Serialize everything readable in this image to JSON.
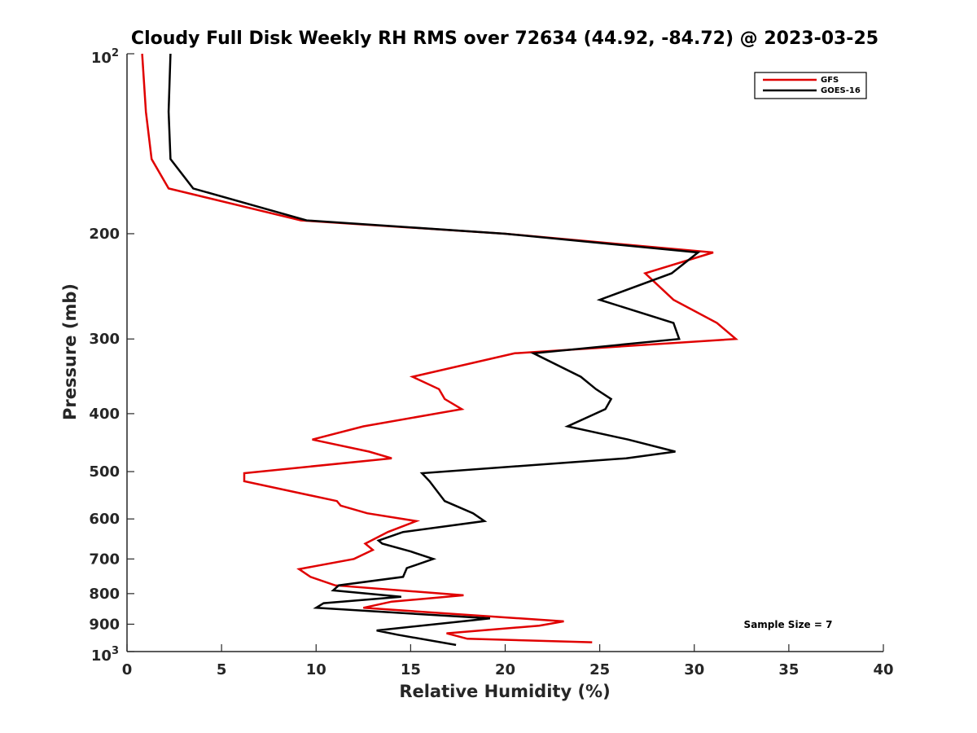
{
  "chart_data": {
    "type": "line",
    "title": "Cloudy Full Disk Weekly RH RMS over 72634 (44.92, -84.72) @ 2023-03-25",
    "xlabel": "Relative Humidity (%)",
    "ylabel": "Pressure (mb)",
    "xlim": [
      0,
      40
    ],
    "ylim": [
      100,
      1000
    ],
    "yscale": "log",
    "y_reversed": true,
    "grid": false,
    "legend_position": "top-right",
    "x_ticks": [
      0,
      5,
      10,
      15,
      20,
      25,
      30,
      35,
      40
    ],
    "x_tick_labels": [
      "0",
      "5",
      "10",
      "15",
      "20",
      "25",
      "30",
      "35",
      "40"
    ],
    "y_ticks": [
      200,
      300,
      400,
      500,
      600,
      700,
      800,
      900
    ],
    "y_tick_labels": [
      "200",
      "300",
      "400",
      "500",
      "600",
      "700",
      "800",
      "900"
    ],
    "y_decade_labels": [
      {
        "value": 100,
        "base": "10",
        "exp": "2"
      },
      {
        "value": 1000,
        "base": "10",
        "exp": "3"
      }
    ],
    "annotation": "Sample Size = 7",
    "series": [
      {
        "name": "GFS",
        "color": "#e00000",
        "points": [
          [
            0.8,
            100
          ],
          [
            1.0,
            125
          ],
          [
            1.3,
            150
          ],
          [
            2.2,
            168
          ],
          [
            9.2,
            190
          ],
          [
            20.0,
            200
          ],
          [
            31.0,
            215
          ],
          [
            27.4,
            233
          ],
          [
            28.9,
            258
          ],
          [
            31.2,
            282
          ],
          [
            32.2,
            300
          ],
          [
            20.5,
            317
          ],
          [
            15.1,
            347
          ],
          [
            16.5,
            364
          ],
          [
            16.8,
            378
          ],
          [
            17.7,
            393
          ],
          [
            12.5,
            420
          ],
          [
            9.8,
            442
          ],
          [
            12.8,
            463
          ],
          [
            14.0,
            475
          ],
          [
            6.2,
            503
          ],
          [
            6.2,
            519
          ],
          [
            11.1,
            560
          ],
          [
            11.3,
            570
          ],
          [
            12.7,
            587
          ],
          [
            15.3,
            605
          ],
          [
            13.8,
            631
          ],
          [
            12.6,
            660
          ],
          [
            13.0,
            676
          ],
          [
            12.0,
            700
          ],
          [
            9.1,
            728
          ],
          [
            9.7,
            750
          ],
          [
            11.0,
            775
          ],
          [
            17.8,
            805
          ],
          [
            14.0,
            825
          ],
          [
            12.5,
            845
          ],
          [
            23.1,
            890
          ],
          [
            21.8,
            905
          ],
          [
            16.9,
            932
          ],
          [
            18.0,
            952
          ],
          [
            24.6,
            965
          ]
        ]
      },
      {
        "name": "GOES-16",
        "color": "#000000",
        "points": [
          [
            2.3,
            100
          ],
          [
            2.2,
            125
          ],
          [
            2.3,
            150
          ],
          [
            3.5,
            168
          ],
          [
            9.5,
            190
          ],
          [
            20.0,
            200
          ],
          [
            30.2,
            215
          ],
          [
            28.8,
            233
          ],
          [
            25.0,
            258
          ],
          [
            28.9,
            282
          ],
          [
            29.2,
            300
          ],
          [
            21.5,
            317
          ],
          [
            24.0,
            347
          ],
          [
            24.8,
            364
          ],
          [
            25.6,
            378
          ],
          [
            25.3,
            393
          ],
          [
            23.3,
            420
          ],
          [
            26.5,
            442
          ],
          [
            29.0,
            463
          ],
          [
            26.4,
            475
          ],
          [
            15.6,
            503
          ],
          [
            16.0,
            519
          ],
          [
            16.8,
            560
          ],
          [
            18.3,
            587
          ],
          [
            18.9,
            605
          ],
          [
            14.6,
            631
          ],
          [
            13.3,
            652
          ],
          [
            13.5,
            660
          ],
          [
            15.0,
            680
          ],
          [
            16.2,
            700
          ],
          [
            14.8,
            725
          ],
          [
            14.6,
            750
          ],
          [
            11.2,
            775
          ],
          [
            10.9,
            790
          ],
          [
            14.5,
            810
          ],
          [
            10.4,
            830
          ],
          [
            10.0,
            845
          ],
          [
            19.2,
            880
          ],
          [
            13.2,
            922
          ],
          [
            14.3,
            937
          ],
          [
            17.4,
            975
          ]
        ]
      }
    ]
  }
}
